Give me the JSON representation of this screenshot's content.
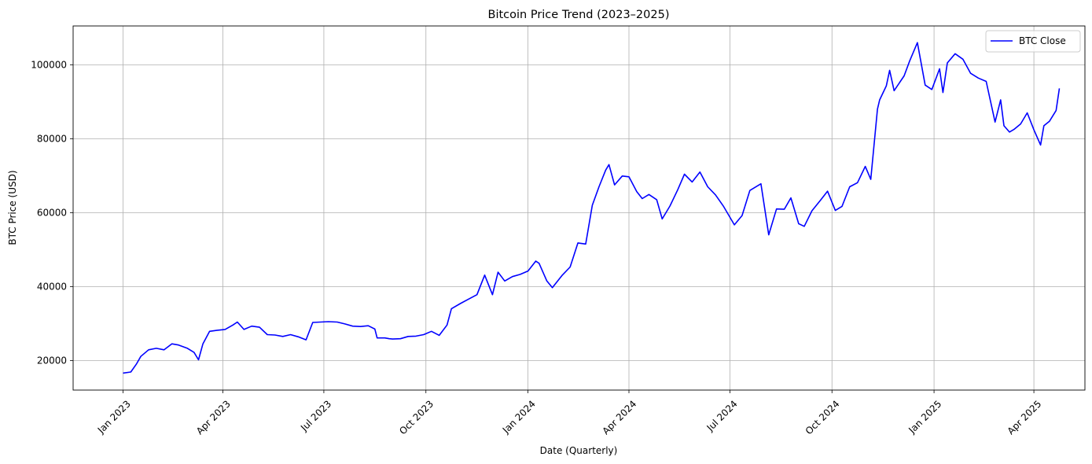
{
  "chart_data": {
    "type": "line",
    "title": "Bitcoin Price Trend (2023–2025)",
    "xlabel": "Date (Quarterly)",
    "ylabel": "BTC Price (USD)",
    "x_ticks": [
      {
        "date": "2023-01-01",
        "label": "Jan 2023"
      },
      {
        "date": "2023-04-01",
        "label": "Apr 2023"
      },
      {
        "date": "2023-07-01",
        "label": "Jul 2023"
      },
      {
        "date": "2023-10-01",
        "label": "Oct 2023"
      },
      {
        "date": "2024-01-01",
        "label": "Jan 2024"
      },
      {
        "date": "2024-04-01",
        "label": "Apr 2024"
      },
      {
        "date": "2024-07-01",
        "label": "Jul 2024"
      },
      {
        "date": "2024-10-01",
        "label": "Oct 2024"
      },
      {
        "date": "2025-01-01",
        "label": "Jan 2025"
      },
      {
        "date": "2025-04-01",
        "label": "Apr 2025"
      }
    ],
    "y_ticks": [
      20000,
      40000,
      60000,
      80000,
      100000
    ],
    "xlim": [
      "2022-11-17",
      "2025-05-17"
    ],
    "ylim": [
      12000,
      110500
    ],
    "grid": true,
    "legend_position": "top-right",
    "series": [
      {
        "name": "BTC Close",
        "color": "#0000ff",
        "x": [
          "2023-01-01",
          "2023-01-08",
          "2023-01-13",
          "2023-01-17",
          "2023-01-24",
          "2023-01-31",
          "2023-02-07",
          "2023-02-14",
          "2023-02-20",
          "2023-02-28",
          "2023-03-06",
          "2023-03-10",
          "2023-03-14",
          "2023-03-20",
          "2023-03-27",
          "2023-04-03",
          "2023-04-10",
          "2023-04-14",
          "2023-04-20",
          "2023-04-27",
          "2023-05-04",
          "2023-05-11",
          "2023-05-18",
          "2023-05-25",
          "2023-06-01",
          "2023-06-08",
          "2023-06-15",
          "2023-06-21",
          "2023-06-28",
          "2023-07-05",
          "2023-07-13",
          "2023-07-20",
          "2023-07-27",
          "2023-08-03",
          "2023-08-10",
          "2023-08-16",
          "2023-08-18",
          "2023-08-25",
          "2023-08-29",
          "2023-09-01",
          "2023-09-08",
          "2023-09-15",
          "2023-09-22",
          "2023-09-29",
          "2023-10-06",
          "2023-10-13",
          "2023-10-20",
          "2023-10-24",
          "2023-11-01",
          "2023-11-09",
          "2023-11-16",
          "2023-11-23",
          "2023-11-30",
          "2023-12-05",
          "2023-12-11",
          "2023-12-18",
          "2023-12-25",
          "2024-01-01",
          "2024-01-08",
          "2024-01-11",
          "2024-01-18",
          "2024-01-23",
          "2024-02-01",
          "2024-02-08",
          "2024-02-15",
          "2024-02-22",
          "2024-02-28",
          "2024-03-05",
          "2024-03-11",
          "2024-03-14",
          "2024-03-19",
          "2024-03-26",
          "2024-04-01",
          "2024-04-08",
          "2024-04-13",
          "2024-04-19",
          "2024-04-26",
          "2024-05-01",
          "2024-05-08",
          "2024-05-15",
          "2024-05-21",
          "2024-05-28",
          "2024-06-04",
          "2024-06-11",
          "2024-06-18",
          "2024-06-25",
          "2024-07-05",
          "2024-07-12",
          "2024-07-19",
          "2024-07-29",
          "2024-08-05",
          "2024-08-12",
          "2024-08-19",
          "2024-08-25",
          "2024-09-01",
          "2024-09-06",
          "2024-09-13",
          "2024-09-20",
          "2024-09-27",
          "2024-10-04",
          "2024-10-10",
          "2024-10-17",
          "2024-10-24",
          "2024-10-31",
          "2024-11-05",
          "2024-11-11",
          "2024-11-13",
          "2024-11-19",
          "2024-11-22",
          "2024-11-26",
          "2024-12-05",
          "2024-12-10",
          "2024-12-17",
          "2024-12-24",
          "2024-12-30",
          "2025-01-06",
          "2025-01-09",
          "2025-01-13",
          "2025-01-20",
          "2025-01-27",
          "2025-02-03",
          "2025-02-10",
          "2025-02-17",
          "2025-02-25",
          "2025-03-02",
          "2025-03-05",
          "2025-03-10",
          "2025-03-14",
          "2025-03-20",
          "2025-03-26",
          "2025-04-01",
          "2025-04-07",
          "2025-04-10",
          "2025-04-15",
          "2025-04-21",
          "2025-04-24"
        ],
        "values": [
          16600,
          16900,
          19000,
          21100,
          22900,
          23300,
          22900,
          24500,
          24200,
          23300,
          22200,
          20200,
          24500,
          27900,
          28200,
          28400,
          29600,
          30400,
          28400,
          29300,
          29000,
          27000,
          26900,
          26500,
          27000,
          26400,
          25600,
          30300,
          30400,
          30500,
          30400,
          29900,
          29300,
          29200,
          29400,
          28500,
          26100,
          26100,
          25900,
          25800,
          25900,
          26500,
          26600,
          27000,
          27900,
          26800,
          29600,
          34000,
          35400,
          36700,
          37800,
          43100,
          37800,
          43900,
          41500,
          42700,
          43300,
          44200,
          46900,
          46300,
          41500,
          39700,
          43100,
          45300,
          51800,
          51500,
          62000,
          67000,
          71500,
          73000,
          67500,
          69900,
          69700,
          65700,
          63800,
          64900,
          63500,
          58300,
          61800,
          66200,
          70400,
          68300,
          71000,
          67000,
          64800,
          61800,
          56700,
          59200,
          66000,
          67800,
          54000,
          61000,
          60900,
          64000,
          57000,
          56300,
          60500,
          63100,
          65800,
          60600,
          61700,
          67000,
          68100,
          72500,
          69000,
          88000,
          90500,
          94300,
          98500,
          93000,
          97000,
          101000,
          106000,
          94500,
          93300,
          98900,
          92500,
          100500,
          103000,
          101500,
          97700,
          96400,
          95500,
          84500,
          90500,
          83500,
          81800,
          82500,
          84000,
          87000,
          82400,
          78300,
          83500,
          84700,
          87600,
          93600
        ]
      }
    ]
  }
}
